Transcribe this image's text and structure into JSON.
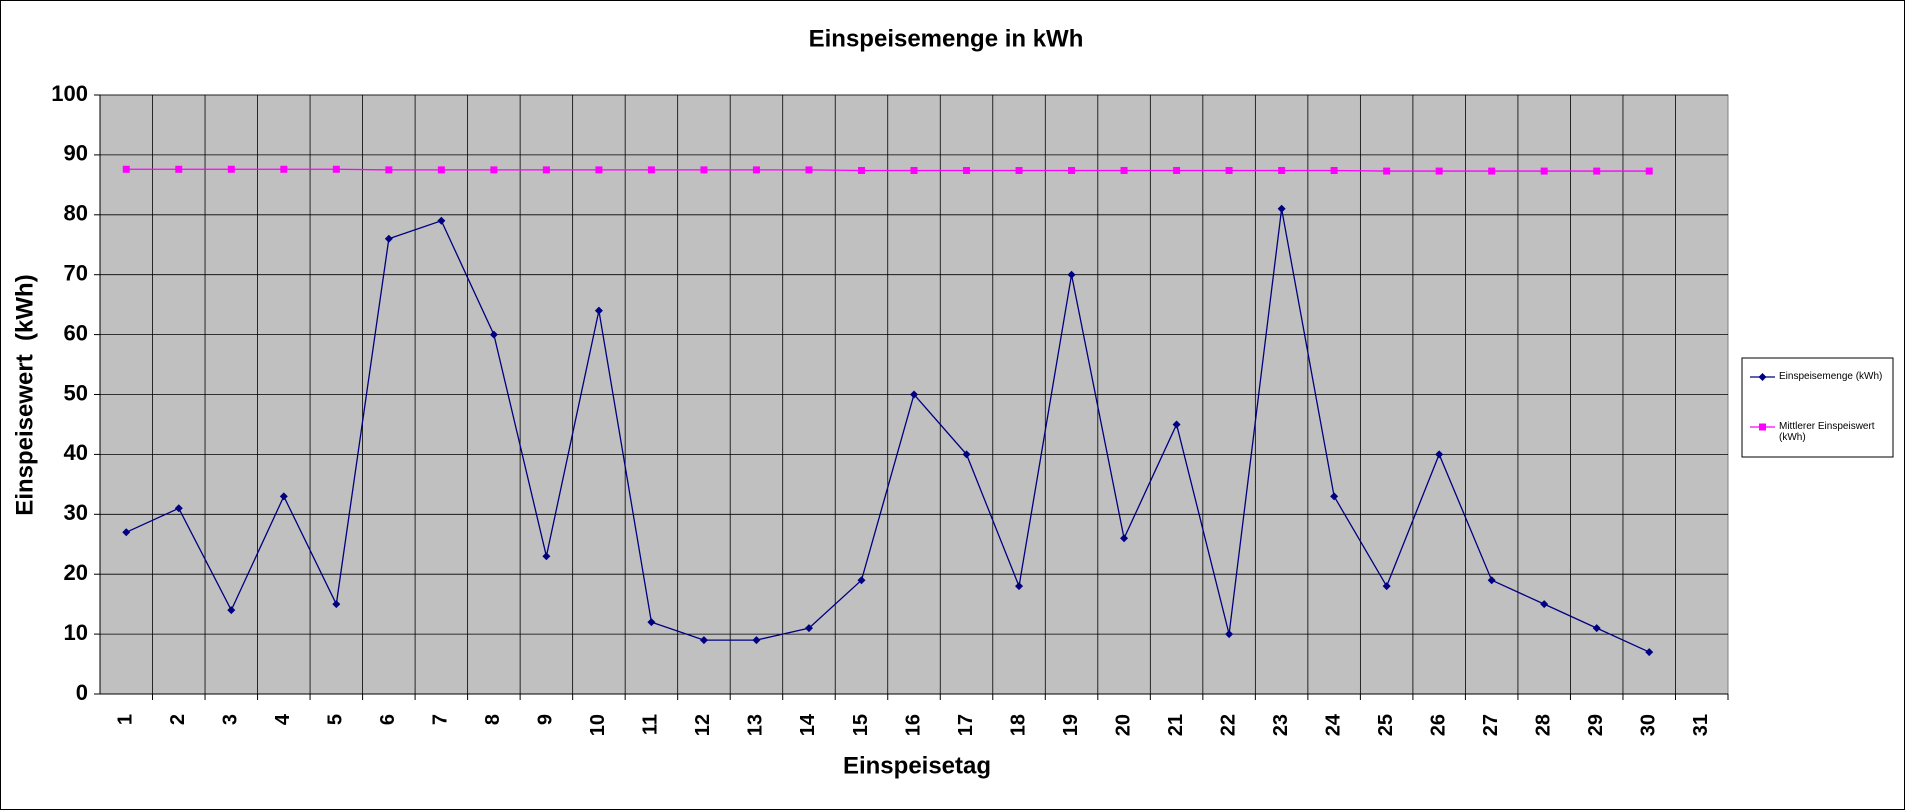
{
  "chart_data": {
    "type": "line",
    "title": "Einspeisemenge in kWh",
    "x_label": "Einspeisetag",
    "y_label": "Einspeisewert  (kWh)",
    "categories": [
      "1",
      "2",
      "3",
      "4",
      "5",
      "6",
      "7",
      "8",
      "9",
      "10",
      "11",
      "12",
      "13",
      "14",
      "15",
      "16",
      "17",
      "18",
      "19",
      "20",
      "21",
      "22",
      "23",
      "24",
      "25",
      "26",
      "27",
      "28",
      "29",
      "30",
      "31"
    ],
    "series": [
      {
        "name": "Einspeisemenge (kWh)",
        "color": "#000080",
        "marker": "diamond",
        "values": [
          27,
          31,
          14,
          33,
          15,
          76,
          79,
          60,
          23,
          64,
          12,
          9,
          9,
          11,
          19,
          50,
          40,
          18,
          70,
          26,
          45,
          10,
          81,
          33,
          18,
          40,
          19,
          15,
          11,
          7,
          null
        ]
      },
      {
        "name": "Mittlerer Einspeiswert (kWh)",
        "color": "#ff00ff",
        "marker": "square",
        "values": [
          87.6,
          87.6,
          87.6,
          87.6,
          87.6,
          87.5,
          87.5,
          87.5,
          87.5,
          87.5,
          87.5,
          87.5,
          87.5,
          87.5,
          87.4,
          87.4,
          87.4,
          87.4,
          87.4,
          87.4,
          87.4,
          87.4,
          87.4,
          87.4,
          87.3,
          87.3,
          87.3,
          87.3,
          87.3,
          87.3,
          null
        ]
      }
    ],
    "ylim": [
      0,
      100
    ],
    "yticks": [
      0,
      10,
      20,
      30,
      40,
      50,
      60,
      70,
      80,
      90,
      100
    ],
    "grid": true,
    "legend": "right"
  }
}
